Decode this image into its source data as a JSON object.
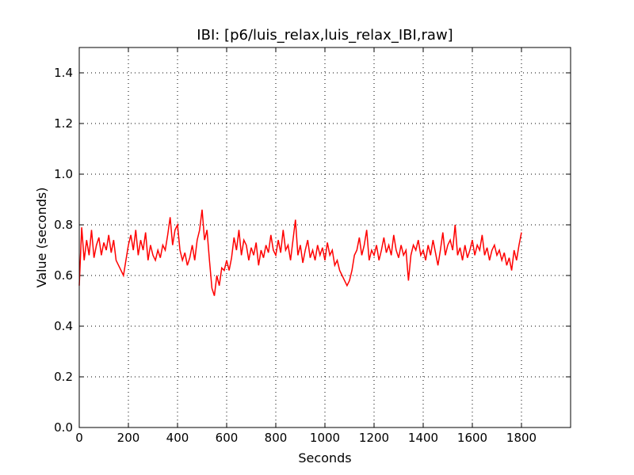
{
  "chart_data": {
    "type": "line",
    "title": "IBI: [p6/luis_relax,luis_relax_IBI,raw]",
    "x_label": "Seconds",
    "y_label": "Value (seconds)",
    "xlim": [
      0,
      2000
    ],
    "ylim": [
      0,
      1.5
    ],
    "xticks": [
      0,
      200,
      400,
      600,
      800,
      1000,
      1200,
      1400,
      1600,
      1800
    ],
    "yticks": [
      {
        "value": 0,
        "label": "0.0"
      },
      0.2,
      0.4,
      0.6,
      0.8,
      {
        "value": 1,
        "label": "1.0"
      },
      1.2,
      1.4
    ],
    "grid": true,
    "x": [
      0,
      10,
      20,
      30,
      40,
      50,
      60,
      70,
      80,
      90,
      100,
      110,
      120,
      130,
      140,
      150,
      160,
      170,
      180,
      190,
      200,
      210,
      220,
      230,
      240,
      250,
      260,
      270,
      280,
      290,
      300,
      310,
      320,
      330,
      340,
      350,
      360,
      370,
      380,
      390,
      400,
      410,
      420,
      430,
      440,
      450,
      460,
      470,
      480,
      490,
      500,
      510,
      520,
      530,
      540,
      550,
      560,
      570,
      580,
      590,
      600,
      610,
      620,
      630,
      640,
      650,
      660,
      670,
      680,
      690,
      700,
      710,
      720,
      730,
      740,
      750,
      760,
      770,
      780,
      790,
      800,
      810,
      820,
      830,
      840,
      850,
      860,
      870,
      880,
      890,
      900,
      910,
      920,
      930,
      940,
      950,
      960,
      970,
      980,
      990,
      1000,
      1010,
      1020,
      1030,
      1040,
      1050,
      1060,
      1070,
      1080,
      1090,
      1100,
      1110,
      1120,
      1130,
      1140,
      1150,
      1160,
      1170,
      1180,
      1190,
      1200,
      1210,
      1220,
      1230,
      1240,
      1250,
      1260,
      1270,
      1280,
      1290,
      1300,
      1310,
      1320,
      1330,
      1340,
      1350,
      1360,
      1370,
      1380,
      1390,
      1400,
      1410,
      1420,
      1430,
      1440,
      1450,
      1460,
      1470,
      1480,
      1490,
      1500,
      1510,
      1520,
      1530,
      1540,
      1550,
      1560,
      1570,
      1580,
      1590,
      1600,
      1610,
      1620,
      1630,
      1640,
      1650,
      1660,
      1670,
      1680,
      1690,
      1700,
      1710,
      1720,
      1730,
      1740,
      1750,
      1760,
      1770,
      1780,
      1790,
      1800
    ],
    "series": [
      {
        "color": "#ff0000",
        "values": [
          0.56,
          0.79,
          0.66,
          0.74,
          0.68,
          0.78,
          0.67,
          0.72,
          0.75,
          0.68,
          0.73,
          0.7,
          0.76,
          0.69,
          0.74,
          0.66,
          0.64,
          0.62,
          0.6,
          0.66,
          0.72,
          0.76,
          0.7,
          0.78,
          0.68,
          0.74,
          0.7,
          0.77,
          0.66,
          0.72,
          0.68,
          0.66,
          0.7,
          0.67,
          0.72,
          0.7,
          0.76,
          0.83,
          0.72,
          0.78,
          0.8,
          0.7,
          0.66,
          0.69,
          0.64,
          0.67,
          0.72,
          0.66,
          0.74,
          0.78,
          0.86,
          0.74,
          0.78,
          0.66,
          0.55,
          0.52,
          0.6,
          0.56,
          0.63,
          0.62,
          0.66,
          0.62,
          0.67,
          0.75,
          0.7,
          0.78,
          0.68,
          0.74,
          0.72,
          0.66,
          0.71,
          0.68,
          0.73,
          0.64,
          0.7,
          0.67,
          0.72,
          0.69,
          0.76,
          0.7,
          0.68,
          0.74,
          0.69,
          0.78,
          0.7,
          0.72,
          0.66,
          0.74,
          0.82,
          0.68,
          0.72,
          0.65,
          0.7,
          0.74,
          0.67,
          0.7,
          0.66,
          0.72,
          0.68,
          0.71,
          0.66,
          0.73,
          0.68,
          0.7,
          0.64,
          0.66,
          0.62,
          0.6,
          0.58,
          0.56,
          0.58,
          0.62,
          0.68,
          0.7,
          0.75,
          0.68,
          0.72,
          0.78,
          0.66,
          0.7,
          0.68,
          0.72,
          0.66,
          0.7,
          0.75,
          0.69,
          0.72,
          0.68,
          0.76,
          0.7,
          0.67,
          0.72,
          0.68,
          0.7,
          0.58,
          0.68,
          0.72,
          0.7,
          0.74,
          0.68,
          0.7,
          0.66,
          0.72,
          0.68,
          0.74,
          0.69,
          0.64,
          0.7,
          0.77,
          0.68,
          0.72,
          0.74,
          0.7,
          0.8,
          0.68,
          0.71,
          0.66,
          0.72,
          0.67,
          0.7,
          0.74,
          0.68,
          0.72,
          0.7,
          0.76,
          0.68,
          0.71,
          0.66,
          0.7,
          0.72,
          0.68,
          0.7,
          0.66,
          0.69,
          0.64,
          0.67,
          0.62,
          0.7,
          0.66,
          0.72,
          0.77
        ]
      }
    ]
  }
}
